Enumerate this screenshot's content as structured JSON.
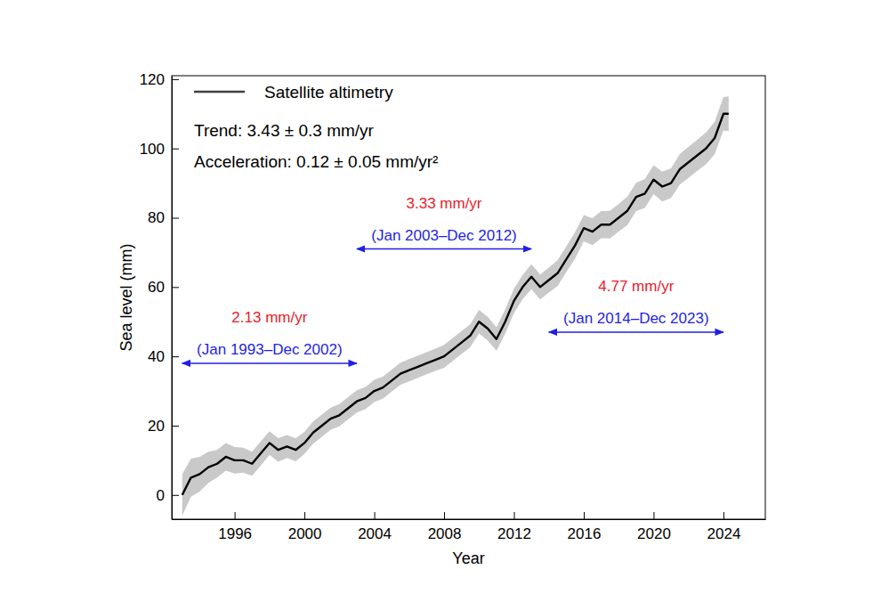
{
  "chart_data": {
    "type": "line",
    "x_label": "Year",
    "y_label": "Sea level (mm)",
    "legend": "upper left",
    "grid": false,
    "stats": [
      "Trend: 3.43 ± 0.3 mm/yr",
      "Acceleration: 0.12 ± 0.05 mm/yr²"
    ],
    "xlim": [
      1992.4,
      2026.4
    ],
    "xticks": [
      1996,
      2000,
      2004,
      2008,
      2012,
      2016,
      2020,
      2024
    ],
    "ylim": [
      -7,
      121
    ],
    "yticks": [
      0,
      20,
      40,
      60,
      80,
      100,
      120
    ],
    "x": [
      1993.0,
      1993.5,
      1994.0,
      1994.5,
      1995.0,
      1995.5,
      1996.0,
      1996.5,
      1997.0,
      1997.5,
      1998.0,
      1998.5,
      1999.0,
      1999.5,
      2000.0,
      2000.5,
      2001.0,
      2001.5,
      2002.0,
      2002.5,
      2003.0,
      2003.5,
      2004.0,
      2004.5,
      2005.0,
      2005.5,
      2006.0,
      2006.5,
      2007.0,
      2007.5,
      2008.0,
      2008.5,
      2009.0,
      2009.5,
      2010.0,
      2010.5,
      2011.0,
      2011.5,
      2012.0,
      2012.5,
      2013.0,
      2013.5,
      2014.0,
      2014.5,
      2015.0,
      2015.5,
      2016.0,
      2016.5,
      2017.0,
      2017.5,
      2018.0,
      2018.5,
      2019.0,
      2019.5,
      2020.0,
      2020.5,
      2021.0,
      2021.5,
      2022.0,
      2022.5,
      2023.0,
      2023.5,
      2024.0,
      2024.3
    ],
    "series": [
      {
        "name": "Satellite altimetry",
        "color": "#000000",
        "values": [
          0,
          5,
          6,
          8,
          9,
          11,
          10,
          10,
          9,
          12,
          15,
          13,
          14,
          13,
          15,
          18,
          20,
          22,
          23,
          25,
          27,
          28,
          30,
          31,
          33,
          35,
          36,
          37,
          38,
          39,
          40,
          42,
          44,
          46,
          50,
          48,
          45,
          50,
          56,
          60,
          63,
          60,
          62,
          64,
          68,
          72,
          77,
          76,
          78,
          78,
          80,
          82,
          86,
          87,
          91,
          89,
          90,
          94,
          96,
          98,
          100,
          103,
          110,
          110
        ],
        "uncertainty": [
          6,
          5.5,
          5,
          4.5,
          4,
          4,
          3.8,
          3.6,
          3.5,
          3.5,
          3.4,
          3.4,
          3.3,
          3.3,
          3.2,
          3.2,
          3.2,
          3.2,
          3.2,
          3.2,
          3.2,
          3.2,
          3.2,
          3.2,
          3.2,
          3.2,
          3.2,
          3.2,
          3.2,
          3.2,
          3.3,
          3.3,
          3.3,
          3.3,
          3.4,
          3.4,
          3.4,
          3.5,
          3.5,
          3.5,
          3.6,
          3.6,
          3.6,
          3.7,
          3.7,
          3.8,
          3.8,
          3.9,
          3.9,
          4,
          4,
          4.1,
          4.1,
          4.2,
          4.2,
          4.3,
          4.3,
          4.4,
          4.5,
          4.5,
          4.6,
          4.7,
          4.8,
          5
        ]
      }
    ],
    "annotations": [
      {
        "text": "2.13 mm/yr",
        "period": "(Jan 1993–Dec 2002)",
        "x_range": [
          1993.0,
          2003.0
        ],
        "y": 38
      },
      {
        "text": "3.33 mm/yr",
        "period": "(Jan 2003–Dec 2012)",
        "x_range": [
          2003.0,
          2013.0
        ],
        "y": 71
      },
      {
        "text": "4.77 mm/yr",
        "period": "(Jan 2014–Dec 2023)",
        "x_range": [
          2014.0,
          2024.0
        ],
        "y": 47
      }
    ]
  }
}
